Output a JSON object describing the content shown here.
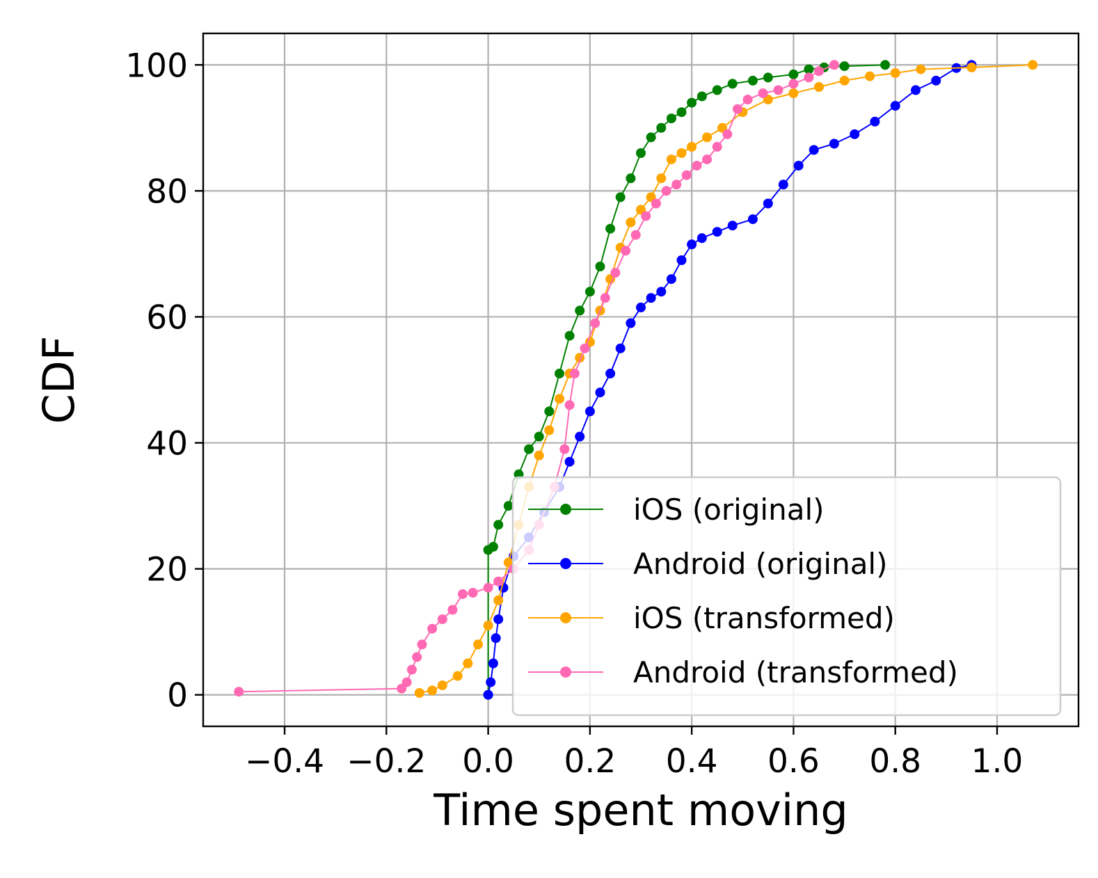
{
  "chart_data": {
    "type": "line",
    "title": "",
    "xlabel": "Time spent moving",
    "ylabel": "CDF",
    "xlim": [
      -0.56,
      1.16
    ],
    "ylim": [
      -5,
      105
    ],
    "x_ticks": [
      -0.4,
      -0.2,
      0.0,
      0.2,
      0.4,
      0.6,
      0.8,
      1.0
    ],
    "x_tick_labels": [
      "−0.4",
      "−0.2",
      "0.0",
      "0.2",
      "0.4",
      "0.6",
      "0.8",
      "1.0"
    ],
    "y_ticks": [
      0,
      20,
      40,
      60,
      80,
      100
    ],
    "y_tick_labels": [
      "0",
      "20",
      "40",
      "60",
      "80",
      "100"
    ],
    "grid": true,
    "legend_position": "lower-right",
    "series": [
      {
        "name": "iOS (original)",
        "color": "#008000",
        "points": [
          [
            0.0,
            0.0
          ],
          [
            0.0,
            23.0
          ],
          [
            0.01,
            23.5
          ],
          [
            0.02,
            27.0
          ],
          [
            0.04,
            30.0
          ],
          [
            0.06,
            35.0
          ],
          [
            0.08,
            39.0
          ],
          [
            0.1,
            41.0
          ],
          [
            0.12,
            45.0
          ],
          [
            0.14,
            51.0
          ],
          [
            0.16,
            57.0
          ],
          [
            0.18,
            61.0
          ],
          [
            0.2,
            64.0
          ],
          [
            0.22,
            68.0
          ],
          [
            0.24,
            74.0
          ],
          [
            0.26,
            79.0
          ],
          [
            0.28,
            82.0
          ],
          [
            0.3,
            86.0
          ],
          [
            0.32,
            88.5
          ],
          [
            0.34,
            90.0
          ],
          [
            0.36,
            91.5
          ],
          [
            0.38,
            92.5
          ],
          [
            0.4,
            94.0
          ],
          [
            0.42,
            95.0
          ],
          [
            0.45,
            96.0
          ],
          [
            0.48,
            97.0
          ],
          [
            0.52,
            97.5
          ],
          [
            0.55,
            98.0
          ],
          [
            0.6,
            98.5
          ],
          [
            0.63,
            99.3
          ],
          [
            0.66,
            99.6
          ],
          [
            0.7,
            99.8
          ],
          [
            0.78,
            100.0
          ]
        ]
      },
      {
        "name": "Android (original)",
        "color": "#0000ff",
        "points": [
          [
            0.0,
            0.0
          ],
          [
            0.005,
            2.0
          ],
          [
            0.01,
            5.0
          ],
          [
            0.015,
            9.0
          ],
          [
            0.02,
            12.0
          ],
          [
            0.03,
            17.0
          ],
          [
            0.05,
            22.0
          ],
          [
            0.08,
            25.0
          ],
          [
            0.11,
            29.0
          ],
          [
            0.14,
            33.0
          ],
          [
            0.16,
            37.0
          ],
          [
            0.18,
            41.0
          ],
          [
            0.2,
            45.0
          ],
          [
            0.22,
            48.0
          ],
          [
            0.24,
            51.0
          ],
          [
            0.26,
            55.0
          ],
          [
            0.28,
            59.0
          ],
          [
            0.3,
            61.5
          ],
          [
            0.32,
            63.0
          ],
          [
            0.34,
            64.0
          ],
          [
            0.36,
            66.0
          ],
          [
            0.38,
            69.0
          ],
          [
            0.4,
            71.5
          ],
          [
            0.42,
            72.5
          ],
          [
            0.45,
            73.5
          ],
          [
            0.48,
            74.5
          ],
          [
            0.52,
            75.5
          ],
          [
            0.55,
            78.0
          ],
          [
            0.58,
            81.0
          ],
          [
            0.61,
            84.0
          ],
          [
            0.64,
            86.5
          ],
          [
            0.68,
            87.5
          ],
          [
            0.72,
            89.0
          ],
          [
            0.76,
            91.0
          ],
          [
            0.8,
            93.5
          ],
          [
            0.84,
            96.0
          ],
          [
            0.88,
            97.5
          ],
          [
            0.92,
            99.5
          ],
          [
            0.95,
            100.0
          ]
        ]
      },
      {
        "name": "iOS (transformed)",
        "color": "#ffa500",
        "points": [
          [
            -0.135,
            0.3
          ],
          [
            -0.11,
            0.7
          ],
          [
            -0.09,
            1.5
          ],
          [
            -0.06,
            3.0
          ],
          [
            -0.04,
            5.0
          ],
          [
            -0.02,
            8.0
          ],
          [
            0.0,
            11.0
          ],
          [
            0.02,
            15.0
          ],
          [
            0.04,
            21.0
          ],
          [
            0.06,
            27.0
          ],
          [
            0.08,
            33.0
          ],
          [
            0.1,
            38.0
          ],
          [
            0.12,
            42.0
          ],
          [
            0.14,
            47.0
          ],
          [
            0.16,
            51.0
          ],
          [
            0.18,
            53.5
          ],
          [
            0.2,
            56.0
          ],
          [
            0.22,
            61.0
          ],
          [
            0.24,
            66.0
          ],
          [
            0.26,
            71.0
          ],
          [
            0.28,
            75.0
          ],
          [
            0.3,
            77.0
          ],
          [
            0.32,
            79.0
          ],
          [
            0.34,
            82.0
          ],
          [
            0.36,
            85.0
          ],
          [
            0.38,
            86.0
          ],
          [
            0.4,
            87.0
          ],
          [
            0.43,
            88.5
          ],
          [
            0.46,
            90.0
          ],
          [
            0.5,
            92.5
          ],
          [
            0.55,
            94.5
          ],
          [
            0.6,
            95.5
          ],
          [
            0.65,
            96.5
          ],
          [
            0.7,
            97.5
          ],
          [
            0.75,
            98.2
          ],
          [
            0.8,
            98.7
          ],
          [
            0.85,
            99.3
          ],
          [
            0.95,
            99.6
          ],
          [
            1.07,
            100.0
          ]
        ]
      },
      {
        "name": "Android (transformed)",
        "color": "#ff69b4",
        "points": [
          [
            -0.49,
            0.5
          ],
          [
            -0.17,
            1.0
          ],
          [
            -0.16,
            2.0
          ],
          [
            -0.15,
            4.0
          ],
          [
            -0.14,
            6.0
          ],
          [
            -0.13,
            8.0
          ],
          [
            -0.11,
            10.5
          ],
          [
            -0.09,
            12.0
          ],
          [
            -0.07,
            13.5
          ],
          [
            -0.05,
            16.0
          ],
          [
            -0.03,
            16.2
          ],
          [
            0.0,
            17.0
          ],
          [
            0.02,
            18.0
          ],
          [
            0.05,
            20.0
          ],
          [
            0.08,
            23.0
          ],
          [
            0.1,
            27.0
          ],
          [
            0.13,
            33.0
          ],
          [
            0.15,
            39.0
          ],
          [
            0.16,
            46.0
          ],
          [
            0.17,
            51.0
          ],
          [
            0.19,
            55.0
          ],
          [
            0.21,
            59.0
          ],
          [
            0.23,
            63.0
          ],
          [
            0.25,
            67.0
          ],
          [
            0.27,
            70.5
          ],
          [
            0.29,
            73.0
          ],
          [
            0.31,
            76.0
          ],
          [
            0.33,
            78.0
          ],
          [
            0.35,
            80.0
          ],
          [
            0.37,
            81.0
          ],
          [
            0.39,
            82.5
          ],
          [
            0.41,
            84.0
          ],
          [
            0.43,
            85.0
          ],
          [
            0.45,
            87.0
          ],
          [
            0.47,
            89.0
          ],
          [
            0.49,
            93.0
          ],
          [
            0.51,
            94.5
          ],
          [
            0.54,
            95.5
          ],
          [
            0.57,
            96.0
          ],
          [
            0.6,
            97.0
          ],
          [
            0.63,
            98.0
          ],
          [
            0.65,
            99.0
          ],
          [
            0.68,
            100.0
          ]
        ]
      }
    ]
  }
}
